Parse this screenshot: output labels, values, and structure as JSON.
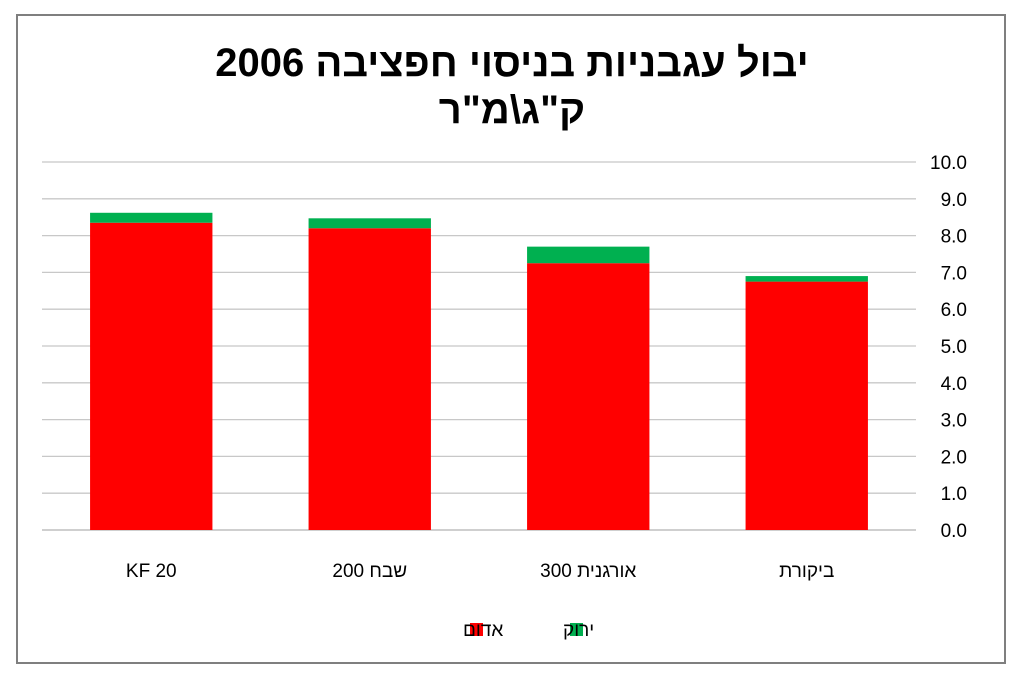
{
  "chart_data": {
    "type": "bar",
    "stacked": true,
    "title_lines": [
      "יבול עגבניות בניסוי חפציבה 2006",
      "ק\"ג\\מ\"ר"
    ],
    "categories": [
      "ביקורת",
      "אורגנית 300",
      "שבח 200",
      "KF 20"
    ],
    "series": [
      {
        "name": "אדום",
        "color": "#ff0000",
        "values": [
          6.75,
          7.25,
          8.2,
          8.35
        ]
      },
      {
        "name": "ירוק",
        "color": "#00b050",
        "values": [
          0.15,
          0.45,
          0.27,
          0.27
        ]
      }
    ],
    "ylim": [
      0,
      10
    ],
    "y_ticks": [
      "0.0",
      "1.0",
      "2.0",
      "3.0",
      "4.0",
      "5.0",
      "6.0",
      "7.0",
      "8.0",
      "9.0",
      "10.0"
    ],
    "y_axis_side": "right",
    "category_order": "right-to-left",
    "grid": true,
    "legend_position": "bottom",
    "legend_order": [
      "ירוק",
      "אדום"
    ]
  }
}
